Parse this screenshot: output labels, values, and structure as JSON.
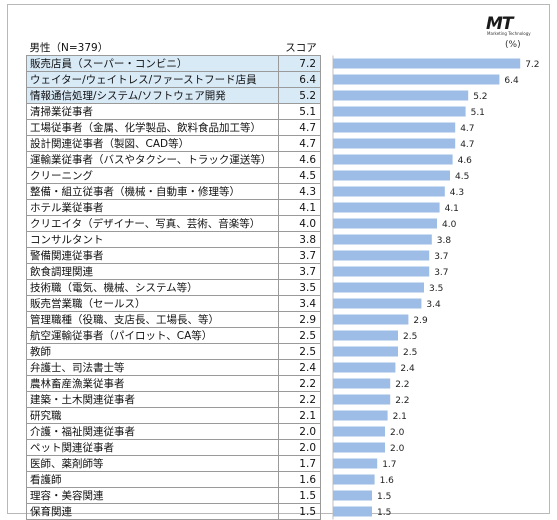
{
  "logo": {
    "mark": "MT",
    "sub": "Marketing Technology"
  },
  "header": {
    "label": "男性（N=379）",
    "value": "スコア"
  },
  "unit": "(%)",
  "chart_data": {
    "type": "bar",
    "orientation": "horizontal",
    "xlim": [
      0,
      7.5
    ],
    "bar_color": "#9dbde6",
    "highlight_color": "#d9eaf7",
    "highlighted_rows": [
      0,
      1,
      2
    ],
    "categories": [
      "販売店員（スーパー・コンビニ）",
      "ウェイター/ウェイトレス/ファーストフード店員",
      "情報通信処理/システム/ソフトウェア開発",
      "清掃業従事者",
      "工場従事者（金属、化学製品、飲料食品加工等）",
      "設計関連従事者（製図、CAD等）",
      "運輸業従事者（バスやタクシー、トラック運送等）",
      "クリーニング",
      "整備・組立従事者（機械・自動車・修理等）",
      "ホテル業従事者",
      "クリエイタ（デザイナー、写真、芸術、音楽等）",
      "コンサルタント",
      "警備関連従事者",
      "飲食調理関連",
      "技術職（電気、機械、システム等）",
      "販売営業職（セールス）",
      "管理職種（役職、支店長、工場長、等）",
      "航空運輸従事者（パイロット、CA等）",
      "教師",
      "弁護士、司法書士等",
      "農林畜産漁業従事者",
      "建築・土木関連従事者",
      "研究職",
      "介護・福祉関連従事者",
      "ペット関連従事者",
      "医師、薬剤師等",
      "看護師",
      "理容・美容関連",
      "保育関連"
    ],
    "values": [
      7.2,
      6.4,
      5.2,
      5.1,
      4.7,
      4.7,
      4.6,
      4.5,
      4.3,
      4.1,
      4.0,
      3.8,
      3.7,
      3.7,
      3.5,
      3.4,
      2.9,
      2.5,
      2.5,
      2.4,
      2.2,
      2.2,
      2.1,
      2.0,
      2.0,
      1.7,
      1.6,
      1.5,
      1.5
    ]
  }
}
